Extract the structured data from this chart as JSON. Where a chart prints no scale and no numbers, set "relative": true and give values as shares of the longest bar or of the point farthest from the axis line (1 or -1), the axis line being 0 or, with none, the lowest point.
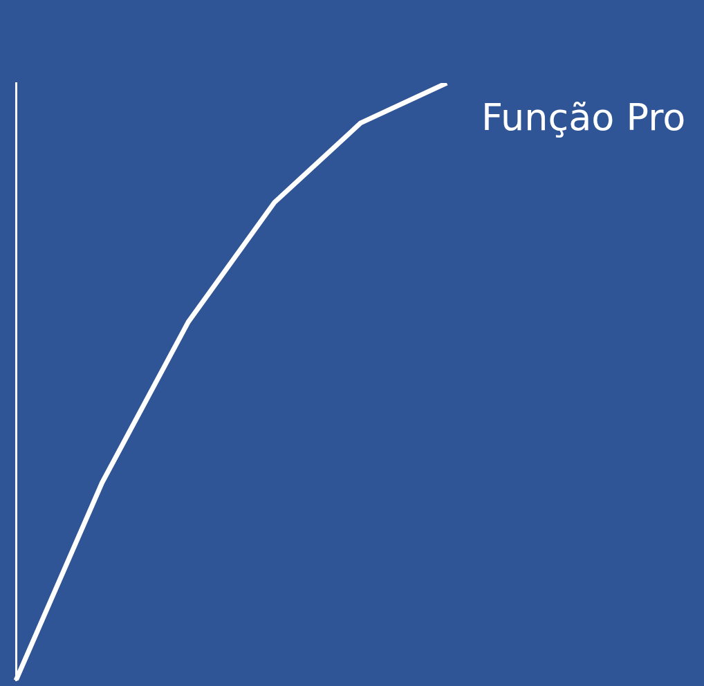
{
  "chart_data": {
    "type": "line",
    "relative": true,
    "categories": [
      null,
      null,
      null,
      null,
      null,
      null
    ],
    "series": [
      {
        "name": "Função Pro",
        "color": "#ffffff",
        "values": [
          0,
          0.331,
          0.6,
          0.8,
          0.933,
          1
        ]
      }
    ],
    "legend": false,
    "grid": false,
    "marker": "none",
    "line_style": "solid"
  }
}
